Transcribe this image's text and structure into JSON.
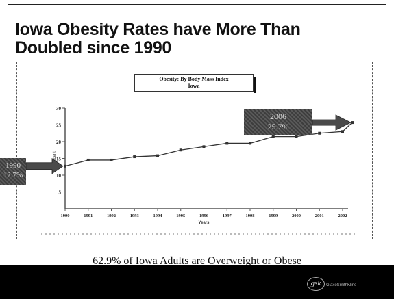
{
  "slide": {
    "title_line1": "Iowa Obesity Rates have More Than",
    "title_line2": "Doubled since 1990",
    "caption": "62.9% of Iowa Adults are Overweight or Obese",
    "logo_mark": "gsk",
    "logo_text": "GlaxoSmithKline"
  },
  "callouts": {
    "start_year": "1990",
    "start_value": "12.7%",
    "end_year": "2006",
    "end_value": "25.7%"
  },
  "chart_data": {
    "type": "line",
    "title": "Obesity: By Body Mass Index",
    "subtitle": "Iowa",
    "xlabel": "Years",
    "ylabel": "Percent",
    "categories": [
      "1990",
      "1991",
      "1992",
      "1993",
      "1994",
      "1995",
      "1996",
      "1997",
      "1998",
      "1999",
      "2000",
      "2001",
      "2002"
    ],
    "series": [
      {
        "values": [
          12.7,
          14.5,
          14.5,
          15.5,
          15.8,
          17.5,
          18.5,
          19.5,
          19.5,
          21.5,
          21.5,
          22.5,
          23.0
        ]
      }
    ],
    "extension": {
      "x": "2006",
      "value": 25.7
    },
    "yticks": [
      5,
      10,
      15,
      20,
      25,
      30
    ],
    "ylim": [
      0,
      30
    ],
    "grid": false,
    "colors": {
      "line": "#333333",
      "axis": "#555555"
    }
  }
}
